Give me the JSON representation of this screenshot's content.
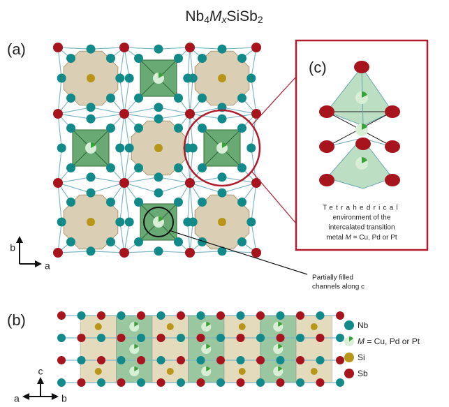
{
  "title": {
    "parts": [
      "Nb",
      "4",
      "M",
      "x",
      "Si",
      "Sb",
      "2"
    ]
  },
  "panels": {
    "a": "(a)",
    "b": "(b)",
    "c": "(c)"
  },
  "axes_a": {
    "vertical": "b",
    "horizontal": "a"
  },
  "axes_b": {
    "vertical": "c",
    "left": "a",
    "right": "b"
  },
  "callout": {
    "lines": [
      "Partially filled",
      "channels along c"
    ]
  },
  "inset": {
    "lines": [
      "Tetrahedrical",
      "environment of the",
      "intercalated transition",
      "metal"
    ],
    "metal_symbol": "M",
    "metal_text": "= Cu, Pd or Pt"
  },
  "legend": {
    "nb": "Nb",
    "m_symbol": "M",
    "m_text": "= Cu, Pd or Pt",
    "si": "Si",
    "sb": "Sb"
  }
}
